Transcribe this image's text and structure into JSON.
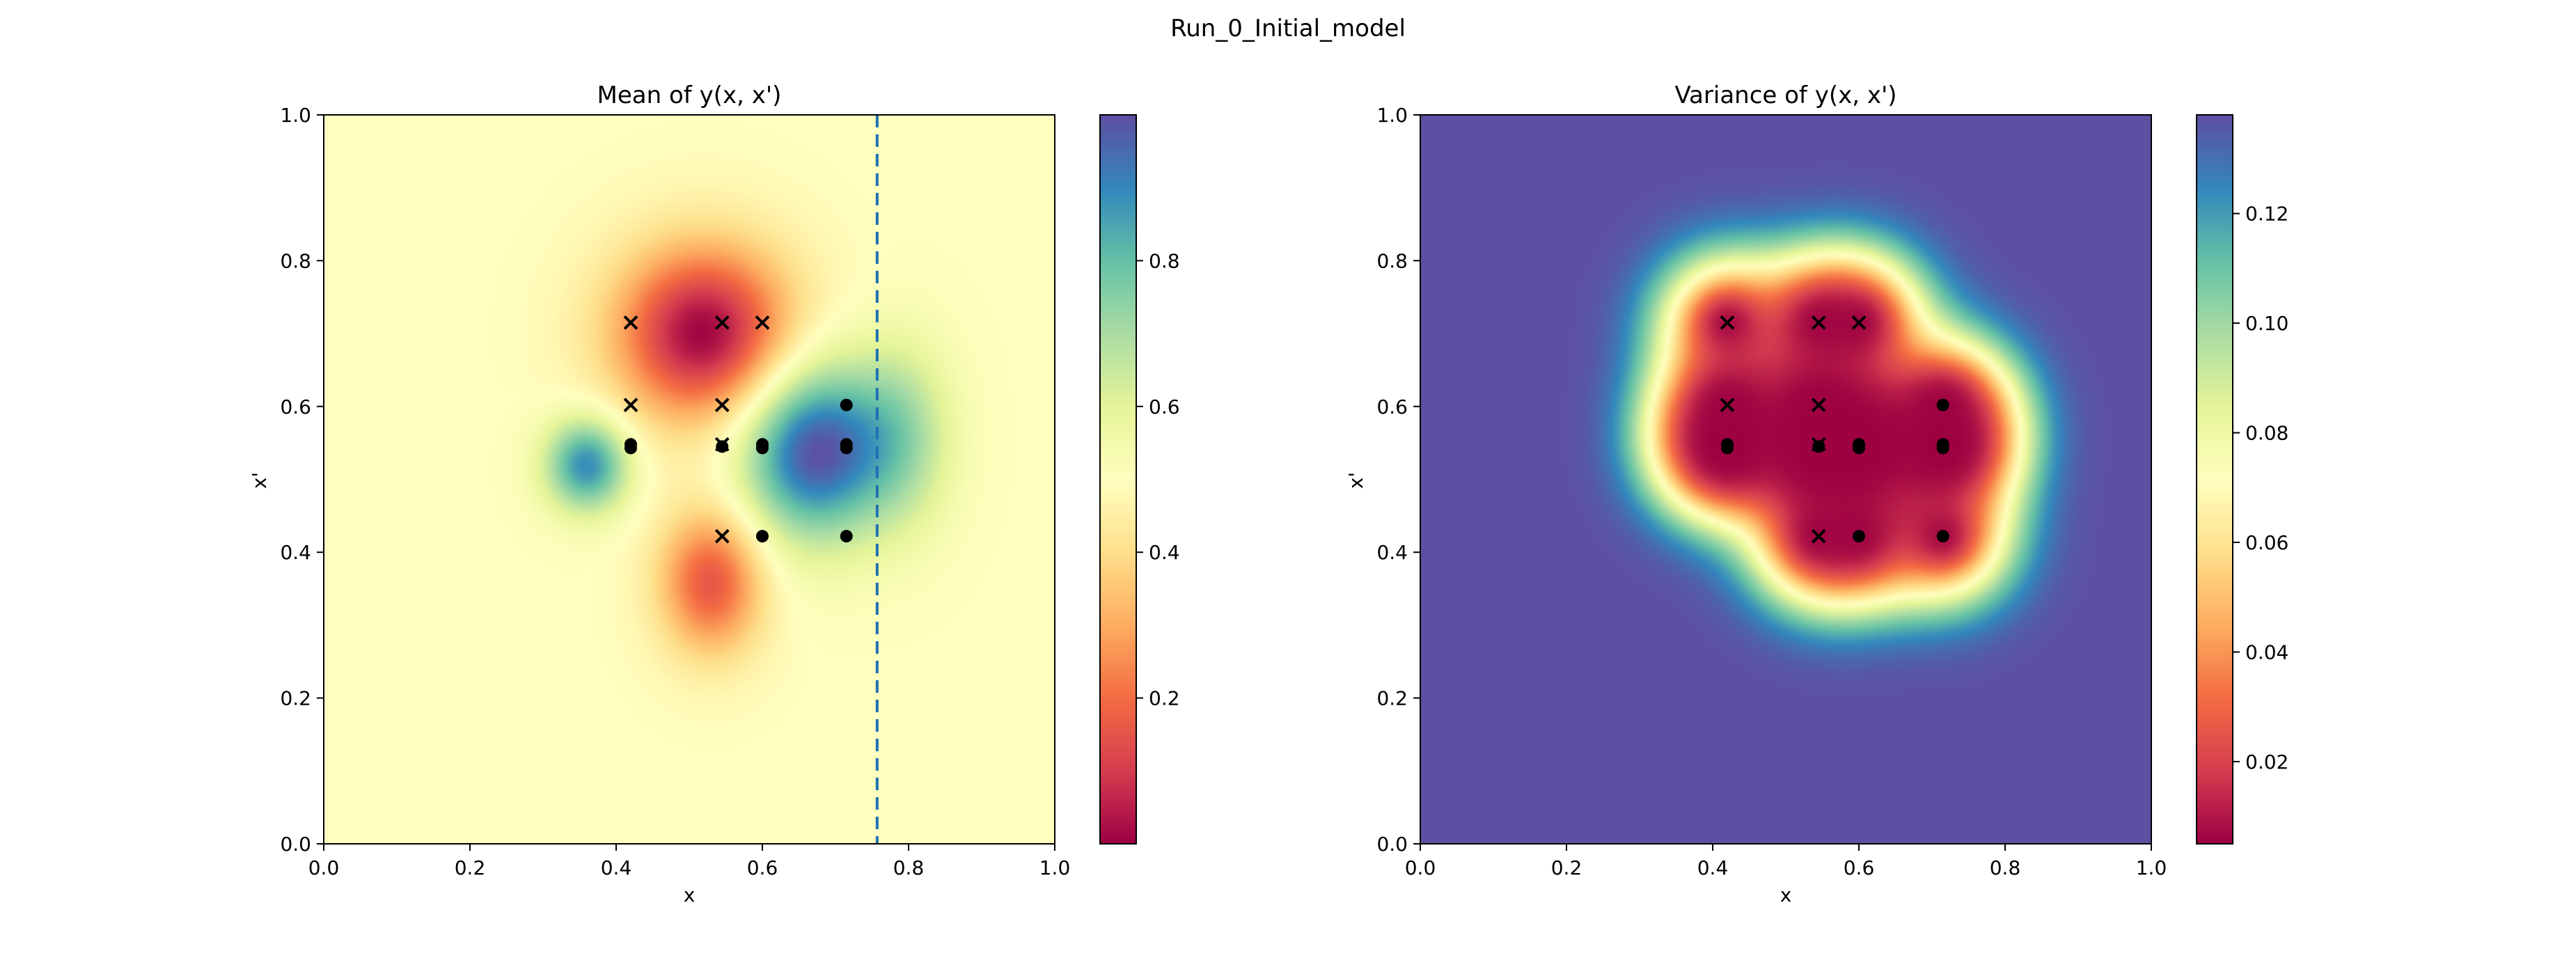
{
  "figure": {
    "suptitle": "Run_0_Initial_model"
  },
  "chart_data": [
    {
      "type": "heatmap",
      "title": "Mean of y(x, x')",
      "xlabel": "x",
      "ylabel": "x'",
      "xlim": [
        0,
        1
      ],
      "ylim": [
        0,
        1
      ],
      "xticks": [
        "0.0",
        "0.2",
        "0.4",
        "0.6",
        "0.8",
        "1.0"
      ],
      "yticks": [
        "0.0",
        "0.2",
        "0.4",
        "0.6",
        "0.8",
        "1.0"
      ],
      "colormap": "Spectral",
      "colorbar": {
        "range": [
          0.0,
          1.0
        ],
        "ticks": [
          "0.2",
          "0.4",
          "0.6",
          "0.8"
        ],
        "tick_values": [
          0.2,
          0.4,
          0.6,
          0.8
        ]
      },
      "background_value": 0.5,
      "features": [
        {
          "x": 0.52,
          "y": 0.7,
          "value": 0.0,
          "sx": 0.085,
          "sy": 0.085
        },
        {
          "x": 0.53,
          "y": 0.36,
          "value": 0.15,
          "sx": 0.05,
          "sy": 0.07
        },
        {
          "x": 0.67,
          "y": 0.54,
          "value": 1.0,
          "sx": 0.07,
          "sy": 0.085
        },
        {
          "x": 0.36,
          "y": 0.52,
          "value": 0.9,
          "sx": 0.04,
          "sy": 0.045
        },
        {
          "x": 0.79,
          "y": 0.56,
          "value": 0.68,
          "sx": 0.05,
          "sy": 0.09
        }
      ],
      "vline": {
        "x": 0.757,
        "style": "dashed",
        "color": "#1f6fb4"
      },
      "markers": {
        "x_marks": [
          [
            0.42,
            0.715
          ],
          [
            0.545,
            0.715
          ],
          [
            0.6,
            0.715
          ],
          [
            0.42,
            0.602
          ],
          [
            0.545,
            0.602
          ],
          [
            0.545,
            0.548
          ],
          [
            0.545,
            0.422
          ]
        ],
        "dots": [
          [
            0.42,
            0.548
          ],
          [
            0.42,
            0.543
          ],
          [
            0.545,
            0.545
          ],
          [
            0.6,
            0.548
          ],
          [
            0.6,
            0.543
          ],
          [
            0.715,
            0.548
          ],
          [
            0.715,
            0.543
          ],
          [
            0.715,
            0.602
          ],
          [
            0.6,
            0.422
          ],
          [
            0.715,
            0.422
          ]
        ]
      }
    },
    {
      "type": "heatmap",
      "title": "Variance of y(x, x')",
      "xlabel": "x",
      "ylabel": "x'",
      "xlim": [
        0,
        1
      ],
      "ylim": [
        0,
        1
      ],
      "xticks": [
        "0.0",
        "0.2",
        "0.4",
        "0.6",
        "0.8",
        "1.0"
      ],
      "yticks": [
        "0.0",
        "0.2",
        "0.4",
        "0.6",
        "0.8",
        "1.0"
      ],
      "colormap": "Spectral",
      "colorbar": {
        "range": [
          0.005,
          0.138
        ],
        "ticks": [
          "0.02",
          "0.04",
          "0.06",
          "0.08",
          "0.10",
          "0.12"
        ],
        "tick_values": [
          0.02,
          0.04,
          0.06,
          0.08,
          0.1,
          0.12
        ]
      },
      "max_value": 0.138,
      "min_value": 0.005,
      "kernel_scale": 0.062,
      "markers": {
        "x_marks": [
          [
            0.42,
            0.715
          ],
          [
            0.545,
            0.715
          ],
          [
            0.6,
            0.715
          ],
          [
            0.42,
            0.602
          ],
          [
            0.545,
            0.602
          ],
          [
            0.545,
            0.548
          ],
          [
            0.545,
            0.422
          ]
        ],
        "dots": [
          [
            0.42,
            0.548
          ],
          [
            0.42,
            0.543
          ],
          [
            0.545,
            0.545
          ],
          [
            0.6,
            0.548
          ],
          [
            0.6,
            0.543
          ],
          [
            0.715,
            0.548
          ],
          [
            0.715,
            0.543
          ],
          [
            0.715,
            0.602
          ],
          [
            0.6,
            0.422
          ],
          [
            0.715,
            0.422
          ]
        ]
      }
    }
  ]
}
